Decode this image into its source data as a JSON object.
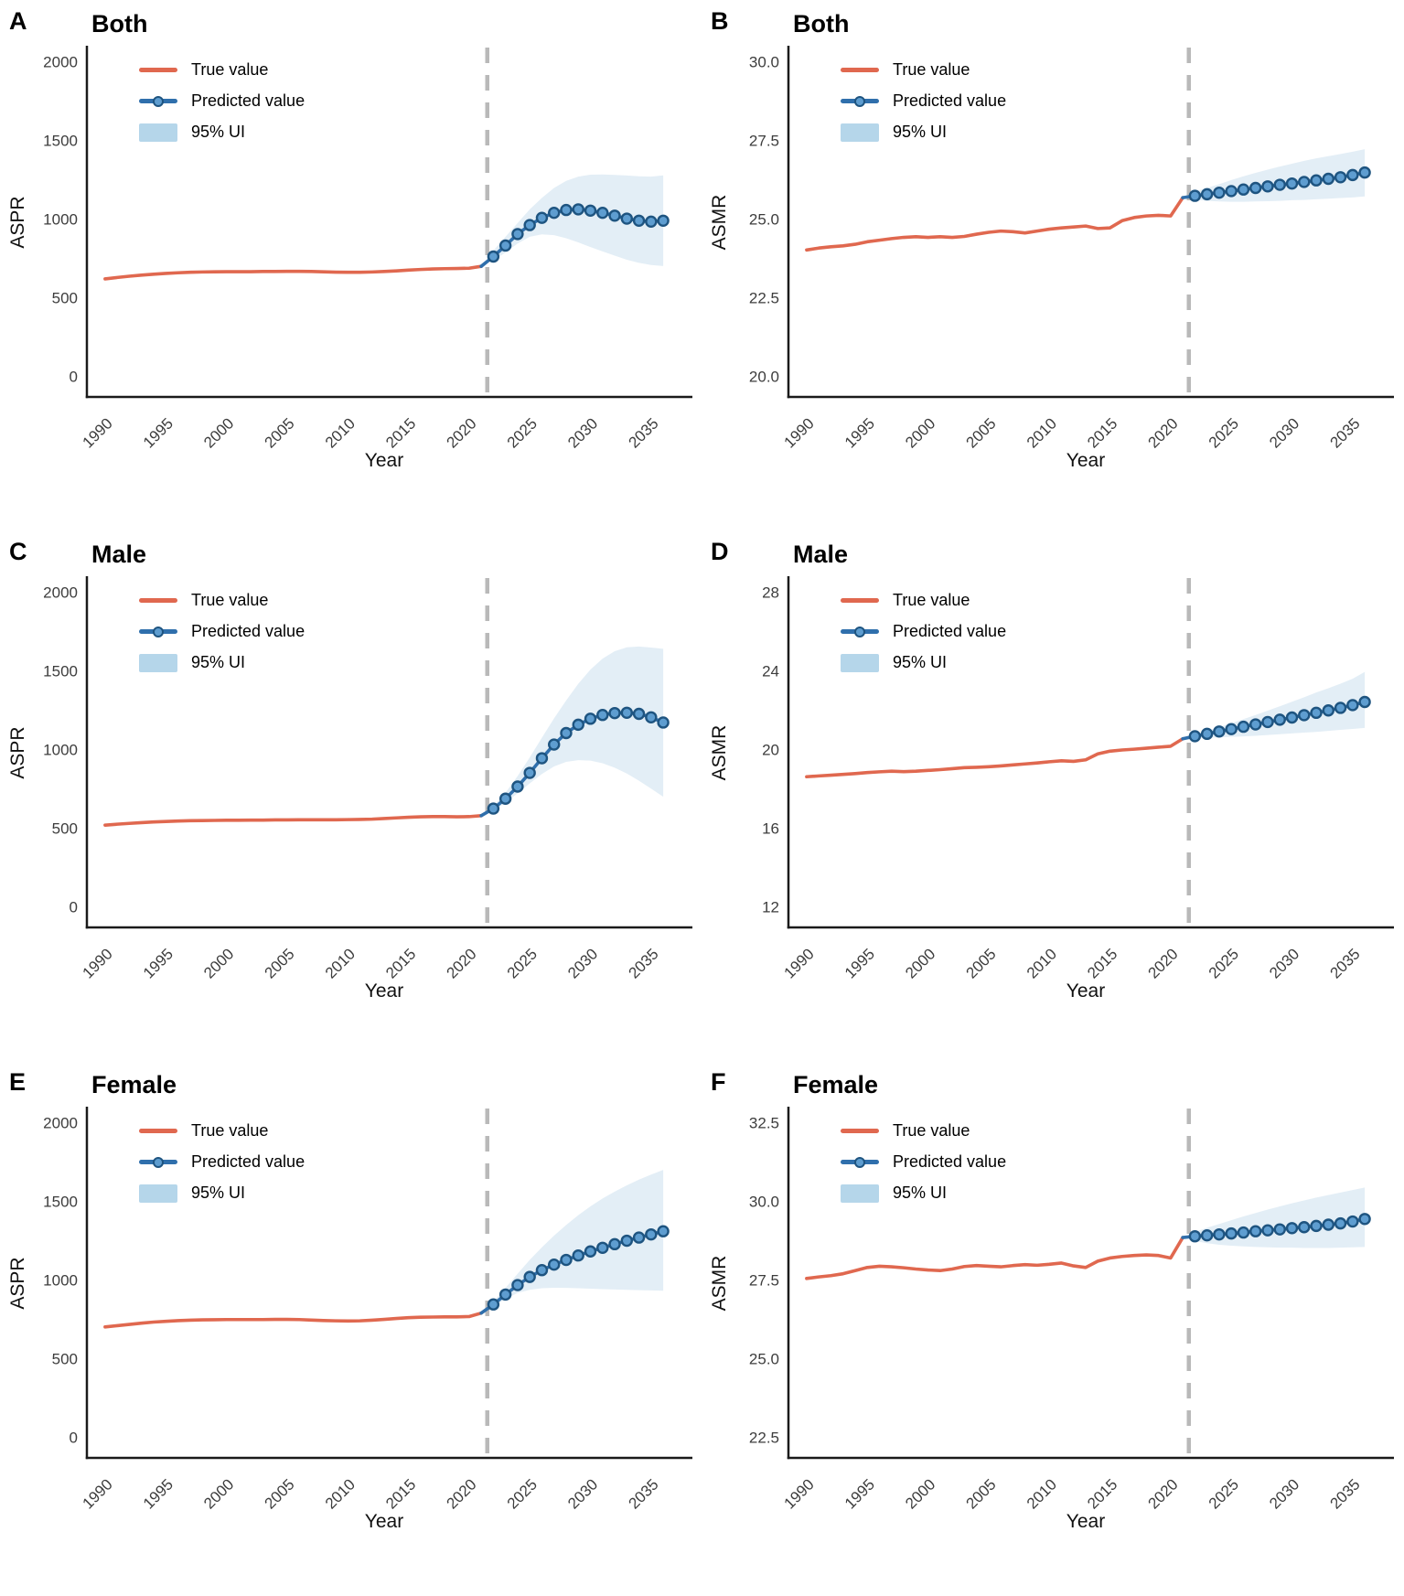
{
  "figure_name": "ASPR and ASMR observed and predicted trends by sex",
  "colors": {
    "true_line": "#E0684F",
    "predicted_line": "#2F6FAC",
    "marker_fill": "#5E9DD0",
    "marker_ring": "#1E5480",
    "band_fill": "#E3EEF6",
    "band_legend": "#B5D6EA",
    "divider": "#B9B9B9",
    "axis": "#1A1A1A",
    "tick_text": "#3D3D3D"
  },
  "chart_data": [
    {
      "panel_label": "A",
      "title": "Both",
      "type": "line",
      "xlabel": "Year",
      "ylabel": "ASPR",
      "legend": [
        "True value",
        "Predicted value",
        "95% UI"
      ],
      "x_ticks": [
        1990,
        1995,
        2000,
        2005,
        2010,
        2015,
        2020,
        2025,
        2030,
        2035
      ],
      "y_ticks": [
        0,
        500,
        1000,
        1500,
        2000
      ],
      "y_tick_labels": [
        "0",
        "500",
        "1000",
        "1500",
        "2000"
      ],
      "xlim": [
        1988.5,
        2037.5
      ],
      "ylim": [
        -130,
        2090
      ],
      "divider_x": 2021.5,
      "series": {
        "true": {
          "name": "True value",
          "years_start": 1990,
          "values": [
            620,
            629,
            637,
            644,
            650,
            655,
            659,
            662,
            664,
            665,
            666,
            666,
            666,
            667,
            667,
            668,
            668,
            667,
            665,
            663,
            662,
            662,
            664,
            667,
            671,
            676,
            680,
            683,
            685,
            686,
            688,
            700
          ]
        },
        "predicted": {
          "name": "Predicted value",
          "years_start": 2021,
          "marker_from_year": 2022,
          "values": [
            700,
            762,
            832,
            905,
            962,
            1008,
            1040,
            1058,
            1062,
            1054,
            1040,
            1022,
            1003,
            990,
            984,
            990
          ]
        },
        "band": {
          "name": "95% UI",
          "years_start": 2022,
          "lower": [
            735,
            788,
            845,
            888,
            903,
            898,
            878,
            852,
            822,
            795,
            768,
            742,
            722,
            708,
            702
          ],
          "upper": [
            800,
            888,
            975,
            1062,
            1135,
            1198,
            1243,
            1270,
            1282,
            1284,
            1281,
            1277,
            1272,
            1270,
            1278
          ]
        }
      }
    },
    {
      "panel_label": "B",
      "title": "Both",
      "type": "line",
      "xlabel": "Year",
      "ylabel": "ASMR",
      "legend": [
        "True value",
        "Predicted value",
        "95% UI"
      ],
      "x_ticks": [
        1990,
        1995,
        2000,
        2005,
        2010,
        2015,
        2020,
        2025,
        2030,
        2035
      ],
      "y_ticks": [
        20.0,
        22.5,
        25.0,
        27.5,
        30.0
      ],
      "y_tick_labels": [
        "20.0",
        "22.5",
        "25.0",
        "27.5",
        "30.0"
      ],
      "xlim": [
        1988.5,
        2037.5
      ],
      "ylim": [
        19.35,
        30.45
      ],
      "divider_x": 2021.5,
      "series": {
        "true": {
          "name": "True value",
          "years_start": 1990,
          "values": [
            24.02,
            24.08,
            24.12,
            24.15,
            24.2,
            24.28,
            24.33,
            24.38,
            24.42,
            24.44,
            24.42,
            24.44,
            24.42,
            24.45,
            24.52,
            24.58,
            24.62,
            24.6,
            24.56,
            24.62,
            24.68,
            24.72,
            24.75,
            24.78,
            24.7,
            24.72,
            24.95,
            25.05,
            25.1,
            25.12,
            25.1,
            25.68
          ]
        },
        "predicted": {
          "name": "Predicted value",
          "years_start": 2021,
          "marker_from_year": 2022,
          "values": [
            25.68,
            25.74,
            25.79,
            25.84,
            25.89,
            25.94,
            25.99,
            26.04,
            26.09,
            26.13,
            26.18,
            26.23,
            26.28,
            26.33,
            26.4,
            26.48
          ]
        },
        "band": {
          "name": "95% UI",
          "years_start": 2022,
          "lower": [
            25.62,
            25.58,
            25.56,
            25.55,
            25.55,
            25.56,
            25.57,
            25.58,
            25.6,
            25.61,
            25.63,
            25.65,
            25.67,
            25.69,
            25.72
          ],
          "upper": [
            25.88,
            25.99,
            26.11,
            26.24,
            26.36,
            26.47,
            26.57,
            26.67,
            26.76,
            26.85,
            26.93,
            27.0,
            27.07,
            27.14,
            27.22
          ]
        }
      }
    },
    {
      "panel_label": "C",
      "title": "Male",
      "type": "line",
      "xlabel": "Year",
      "ylabel": "ASPR",
      "legend": [
        "True value",
        "Predicted value",
        "95% UI"
      ],
      "x_ticks": [
        1990,
        1995,
        2000,
        2005,
        2010,
        2015,
        2020,
        2025,
        2030,
        2035
      ],
      "y_ticks": [
        0,
        500,
        1000,
        1500,
        2000
      ],
      "y_tick_labels": [
        "0",
        "500",
        "1000",
        "1500",
        "2000"
      ],
      "xlim": [
        1988.5,
        2037.5
      ],
      "ylim": [
        -130,
        2090
      ],
      "divider_x": 2021.5,
      "series": {
        "true": {
          "name": "True value",
          "years_start": 1990,
          "values": [
            520,
            526,
            531,
            536,
            540,
            543,
            546,
            548,
            549,
            550,
            551,
            551,
            552,
            552,
            553,
            553,
            554,
            554,
            554,
            554,
            555,
            556,
            558,
            562,
            566,
            570,
            573,
            574,
            574,
            573,
            574,
            580
          ]
        },
        "predicted": {
          "name": "Predicted value",
          "years_start": 2021,
          "marker_from_year": 2022,
          "values": [
            580,
            625,
            688,
            765,
            852,
            945,
            1032,
            1105,
            1158,
            1196,
            1220,
            1232,
            1234,
            1227,
            1205,
            1172
          ]
        },
        "band": {
          "name": "95% UI",
          "years_start": 2022,
          "lower": [
            612,
            662,
            722,
            785,
            845,
            893,
            922,
            933,
            930,
            913,
            885,
            848,
            802,
            752,
            700
          ],
          "upper": [
            640,
            726,
            832,
            950,
            1075,
            1198,
            1312,
            1418,
            1508,
            1578,
            1625,
            1650,
            1655,
            1648,
            1640
          ]
        }
      }
    },
    {
      "panel_label": "D",
      "title": "Male",
      "type": "line",
      "xlabel": "Year",
      "ylabel": "ASMR",
      "legend": [
        "True value",
        "Predicted value",
        "95% UI"
      ],
      "x_ticks": [
        1990,
        1995,
        2000,
        2005,
        2010,
        2015,
        2020,
        2025,
        2030,
        2035
      ],
      "y_ticks": [
        12,
        16,
        20,
        24,
        28
      ],
      "y_tick_labels": [
        "12",
        "16",
        "20",
        "24",
        "28"
      ],
      "xlim": [
        1988.5,
        2037.5
      ],
      "ylim": [
        10.96,
        28.72
      ],
      "divider_x": 2021.5,
      "series": {
        "true": {
          "name": "True value",
          "years_start": 1990,
          "values": [
            18.62,
            18.66,
            18.7,
            18.74,
            18.78,
            18.83,
            18.87,
            18.9,
            18.88,
            18.9,
            18.94,
            18.98,
            19.03,
            19.08,
            19.1,
            19.13,
            19.17,
            19.22,
            19.27,
            19.32,
            19.38,
            19.43,
            19.4,
            19.48,
            19.78,
            19.92,
            19.98,
            20.02,
            20.07,
            20.12,
            20.17,
            20.55
          ]
        },
        "predicted": {
          "name": "Predicted value",
          "years_start": 2021,
          "marker_from_year": 2022,
          "values": [
            20.55,
            20.68,
            20.8,
            20.92,
            21.04,
            21.16,
            21.28,
            21.4,
            21.52,
            21.63,
            21.75,
            21.87,
            21.99,
            22.12,
            22.26,
            22.42
          ]
        },
        "band": {
          "name": "95% UI",
          "years_start": 2022,
          "lower": [
            20.6,
            20.6,
            20.62,
            20.64,
            20.67,
            20.7,
            20.74,
            20.78,
            20.82,
            20.86,
            20.9,
            20.95,
            21.0,
            21.05,
            21.1
          ],
          "upper": [
            20.78,
            20.95,
            21.14,
            21.34,
            21.55,
            21.76,
            21.98,
            22.2,
            22.43,
            22.66,
            22.9,
            23.12,
            23.35,
            23.6,
            23.95
          ]
        }
      }
    },
    {
      "panel_label": "E",
      "title": "Female",
      "type": "line",
      "xlabel": "Year",
      "ylabel": "ASPR",
      "legend": [
        "True value",
        "Predicted value",
        "95% UI"
      ],
      "x_ticks": [
        1990,
        1995,
        2000,
        2005,
        2010,
        2015,
        2020,
        2025,
        2030,
        2035
      ],
      "y_ticks": [
        0,
        500,
        1000,
        1500,
        2000
      ],
      "y_tick_labels": [
        "0",
        "500",
        "1000",
        "1500",
        "2000"
      ],
      "xlim": [
        1988.5,
        2037.5
      ],
      "ylim": [
        -130,
        2090
      ],
      "divider_x": 2021.5,
      "series": {
        "true": {
          "name": "True value",
          "years_start": 1990,
          "values": [
            702,
            710,
            718,
            726,
            733,
            738,
            742,
            745,
            747,
            748,
            749,
            749,
            749,
            749,
            750,
            750,
            749,
            746,
            743,
            741,
            740,
            741,
            745,
            750,
            756,
            761,
            764,
            765,
            766,
            766,
            768,
            790
          ]
        },
        "predicted": {
          "name": "Predicted value",
          "years_start": 2021,
          "marker_from_year": 2022,
          "values": [
            790,
            845,
            908,
            968,
            1020,
            1063,
            1098,
            1128,
            1156,
            1182,
            1205,
            1228,
            1250,
            1270,
            1290,
            1310
          ]
        },
        "band": {
          "name": "95% UI",
          "years_start": 2022,
          "lower": [
            832,
            880,
            918,
            938,
            948,
            951,
            950,
            948,
            945,
            942,
            940,
            938,
            936,
            934,
            932
          ],
          "upper": [
            862,
            950,
            1040,
            1128,
            1208,
            1282,
            1350,
            1412,
            1468,
            1518,
            1562,
            1602,
            1638,
            1670,
            1700
          ]
        }
      }
    },
    {
      "panel_label": "F",
      "title": "Female",
      "type": "line",
      "xlabel": "Year",
      "ylabel": "ASMR",
      "legend": [
        "True value",
        "Predicted value",
        "95% UI"
      ],
      "x_ticks": [
        1990,
        1995,
        2000,
        2005,
        2010,
        2015,
        2020,
        2025,
        2030,
        2035
      ],
      "y_ticks": [
        22.5,
        25.0,
        27.5,
        30.0,
        32.5
      ],
      "y_tick_labels": [
        "22.5",
        "25.0",
        "27.5",
        "30.0",
        "32.5"
      ],
      "xlim": [
        1988.5,
        2037.5
      ],
      "ylim": [
        21.85,
        32.95
      ],
      "divider_x": 2021.5,
      "series": {
        "true": {
          "name": "True value",
          "years_start": 1990,
          "values": [
            27.55,
            27.6,
            27.64,
            27.7,
            27.8,
            27.9,
            27.94,
            27.92,
            27.89,
            27.85,
            27.82,
            27.8,
            27.85,
            27.93,
            27.96,
            27.94,
            27.92,
            27.96,
            27.99,
            27.97,
            28.0,
            28.04,
            27.95,
            27.9,
            28.1,
            28.2,
            28.25,
            28.28,
            28.3,
            28.28,
            28.2,
            28.85
          ]
        },
        "predicted": {
          "name": "Predicted value",
          "years_start": 2021,
          "marker_from_year": 2022,
          "values": [
            28.85,
            28.89,
            28.92,
            28.95,
            28.98,
            29.01,
            29.05,
            29.08,
            29.11,
            29.15,
            29.18,
            29.22,
            29.26,
            29.3,
            29.36,
            29.44
          ]
        },
        "band": {
          "name": "95% UI",
          "years_start": 2022,
          "lower": [
            28.74,
            28.67,
            28.62,
            28.59,
            28.57,
            28.55,
            28.54,
            28.53,
            28.53,
            28.52,
            28.52,
            28.52,
            28.53,
            28.54,
            28.55
          ],
          "upper": [
            29.03,
            29.16,
            29.28,
            29.4,
            29.52,
            29.63,
            29.74,
            29.84,
            29.94,
            30.03,
            30.12,
            30.2,
            30.28,
            30.36,
            30.44
          ]
        }
      }
    }
  ]
}
